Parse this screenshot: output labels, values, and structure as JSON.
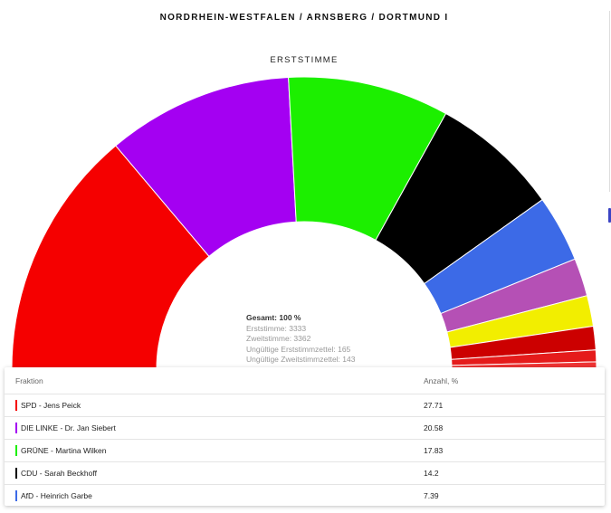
{
  "header": {
    "title": "NORDRHEIN-WESTFALEN / ARNSBERG / DORTMUND I",
    "subtitle": "ERSTSTIMME"
  },
  "tooltip": {
    "total": "Gesamt: 100 %",
    "erststimme": "Erststimme: 3333",
    "zweitstimme": "Zweitstimme: 3362",
    "ungueltig_erst": "Ungültige Erststimmzettel: 165",
    "ungueltig_zweit": "Ungültige Zweitstimmzettel: 143"
  },
  "table": {
    "headers": [
      "Fraktion",
      "Anzahl, %"
    ],
    "rows": [
      {
        "label": "SPD - Jens Peick",
        "value": "27.71",
        "color": "#f50000"
      },
      {
        "label": "DIE LINKE - Dr. Jan Siebert",
        "value": "20.58",
        "color": "#a400f2"
      },
      {
        "label": "GRÜNE - Martina Wilken",
        "value": "17.83",
        "color": "#1cef00"
      },
      {
        "label": "CDU - Sarah Beckhoff",
        "value": "14.2",
        "color": "#000000"
      },
      {
        "label": "AfD - Heinrich Garbe",
        "value": "7.39",
        "color": "#3c6ae7"
      }
    ]
  },
  "chart_data": {
    "type": "pie",
    "subtype": "semicircle-donut",
    "title": "NORDRHEIN-WESTFALEN / ARNSBERG / DORTMUND I",
    "subtitle": "ERSTSTIMME",
    "series": [
      {
        "name": "SPD - Jens Peick",
        "value": 27.71,
        "color": "#f50000"
      },
      {
        "name": "DIE LINKE - Dr. Jan Siebert",
        "value": 20.58,
        "color": "#a400f2"
      },
      {
        "name": "GRÜNE - Martina Wilken",
        "value": 17.83,
        "color": "#1cef00"
      },
      {
        "name": "CDU - Sarah Beckhoff",
        "value": 14.2,
        "color": "#000000"
      },
      {
        "name": "AfD - Heinrich Garbe",
        "value": 7.39,
        "color": "#3c6ae7"
      },
      {
        "value": 4.2,
        "color": "#b550b5"
      },
      {
        "value": 3.4,
        "color": "#f2ee00"
      },
      {
        "value": 2.6,
        "color": "#cc0000"
      },
      {
        "value": 1.3,
        "color": "#e51b1b"
      },
      {
        "value": 0.8,
        "color": "#ee3333"
      }
    ]
  }
}
